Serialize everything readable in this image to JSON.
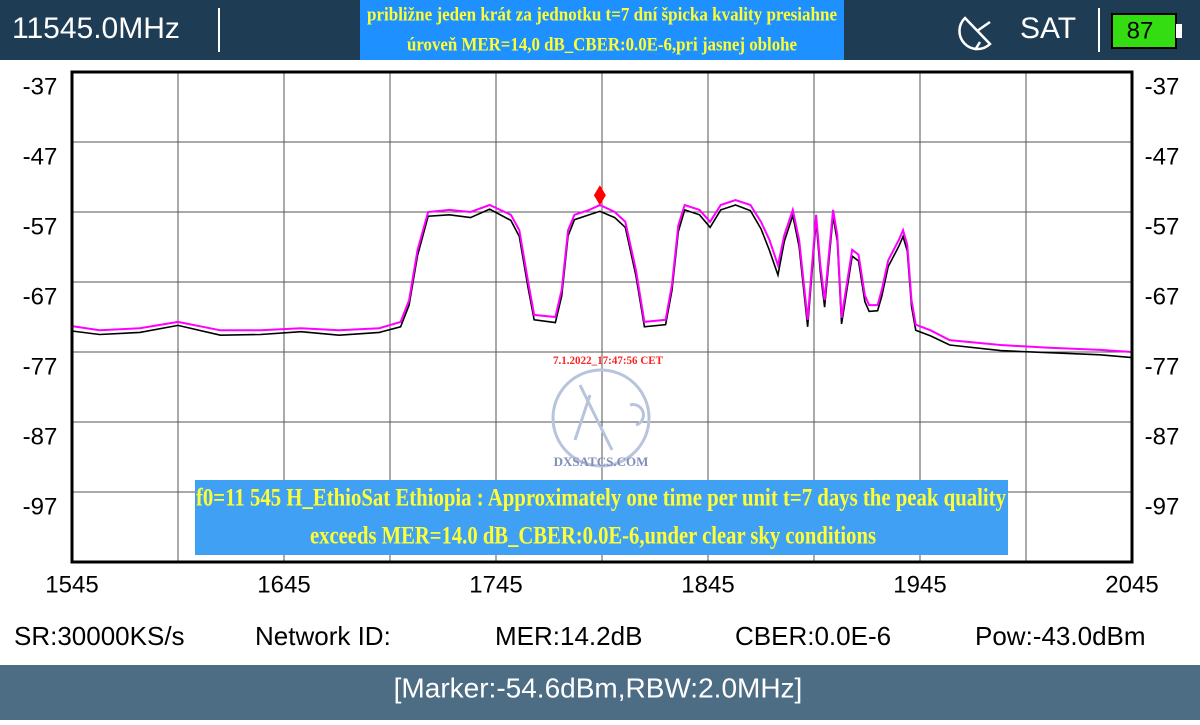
{
  "header": {
    "frequency": "11545.0MHz",
    "banner": [
      "približne jeden krát za jednotku t=7 dní špicka kvality presiahne",
      "úroveň MER=14,0 dB_CBER:0.0E-6,pri jasnej oblohe"
    ],
    "mode": "SAT",
    "battery": 87
  },
  "chart_data": {
    "type": "line",
    "x": [
      1545,
      1558,
      1577,
      1595,
      1615,
      1634,
      1653,
      1671,
      1690,
      1700,
      1704,
      1708,
      1713,
      1723,
      1733,
      1742,
      1752,
      1756,
      1760,
      1763,
      1773,
      1776,
      1779,
      1782,
      1789,
      1794,
      1801,
      1806,
      1811,
      1815,
      1825,
      1828,
      1831,
      1834,
      1841,
      1846,
      1851,
      1858,
      1865,
      1870,
      1874,
      1878,
      1881,
      1885,
      1888,
      1892,
      1896,
      1898,
      1900,
      1904,
      1906,
      1908,
      1913,
      1916,
      1919,
      1921,
      1925,
      1927,
      1930,
      1935,
      1937,
      1939,
      1941,
      1943,
      1950,
      1959,
      1983,
      2006,
      2030,
      2045
    ],
    "series": [
      {
        "name": "max",
        "color": "#000000",
        "values": [
          -74.0,
          -74.5,
          -74.2,
          -73.2,
          -74.6,
          -74.5,
          -74.1,
          -74.6,
          -74.2,
          -73.4,
          -70.3,
          -63.2,
          -57.6,
          -57.4,
          -57.8,
          -56.6,
          -58.2,
          -60.5,
          -67.6,
          -72.4,
          -72.8,
          -69.0,
          -60.4,
          -58.1,
          -57.4,
          -56.9,
          -57.8,
          -59.2,
          -66.1,
          -73.4,
          -73.1,
          -68.2,
          -59.8,
          -56.7,
          -57.4,
          -59.2,
          -56.7,
          -56.0,
          -56.8,
          -59.4,
          -62.5,
          -66.0,
          -61.2,
          -57.5,
          -62.0,
          -73.4,
          -58.3,
          -65.6,
          -70.6,
          -57.6,
          -61.2,
          -73.0,
          -63.3,
          -64.0,
          -69.8,
          -71.2,
          -71.1,
          -69.0,
          -64.8,
          -61.9,
          -60.5,
          -62.6,
          -70.5,
          -73.9,
          -74.7,
          -76.0,
          -76.8,
          -77.1,
          -77.4,
          -77.8
        ]
      },
      {
        "name": "live",
        "color": "#ff00ff",
        "values": [
          -73.3,
          -73.9,
          -73.6,
          -72.7,
          -73.9,
          -73.9,
          -73.6,
          -73.9,
          -73.6,
          -72.7,
          -69.6,
          -62.4,
          -57.0,
          -56.7,
          -57.0,
          -56.0,
          -57.4,
          -59.6,
          -66.7,
          -71.7,
          -72.0,
          -68.1,
          -59.6,
          -57.4,
          -56.7,
          -56.0,
          -57.0,
          -58.4,
          -65.3,
          -72.7,
          -72.4,
          -67.4,
          -58.9,
          -56.0,
          -56.7,
          -58.4,
          -56.0,
          -55.3,
          -56.0,
          -58.4,
          -61.0,
          -64.6,
          -60.3,
          -56.7,
          -61.0,
          -72.4,
          -57.4,
          -64.6,
          -69.6,
          -56.7,
          -60.3,
          -72.1,
          -62.4,
          -63.1,
          -68.9,
          -70.3,
          -70.3,
          -68.1,
          -63.9,
          -61.0,
          -59.6,
          -61.7,
          -69.6,
          -73.1,
          -73.9,
          -75.3,
          -76.0,
          -76.4,
          -76.7,
          -77.0
        ]
      }
    ],
    "xlim": [
      1545,
      2045
    ],
    "xticks": [
      1545,
      1645,
      1745,
      1845,
      1945,
      2045
    ],
    "ylim": [
      -107,
      -37
    ],
    "yticks": [
      -37,
      -47,
      -57,
      -67,
      -77,
      -87,
      -97
    ],
    "grid": true,
    "marker": {
      "x": 1794,
      "y": -54.6,
      "color": "#ff0000"
    },
    "timestamp": "7.1.2022_17:47:56 CET",
    "watermark": "DXSATCS.COM",
    "annotation": [
      "f0=11 545 H_EthioSat Ethiopia : Approximately one time per unit t=7 days the peak quality",
      "exceeds MER=14.0 dB_CBER:0.0E-6,under clear sky conditions"
    ]
  },
  "status": [
    "SR:30000KS/s",
    "Network ID:",
    "MER:14.2dB",
    "CBER:0.0E-6",
    "Pow:-43.0dBm"
  ],
  "footer": "[Marker:-54.6dBm,RBW:2.0MHz]"
}
